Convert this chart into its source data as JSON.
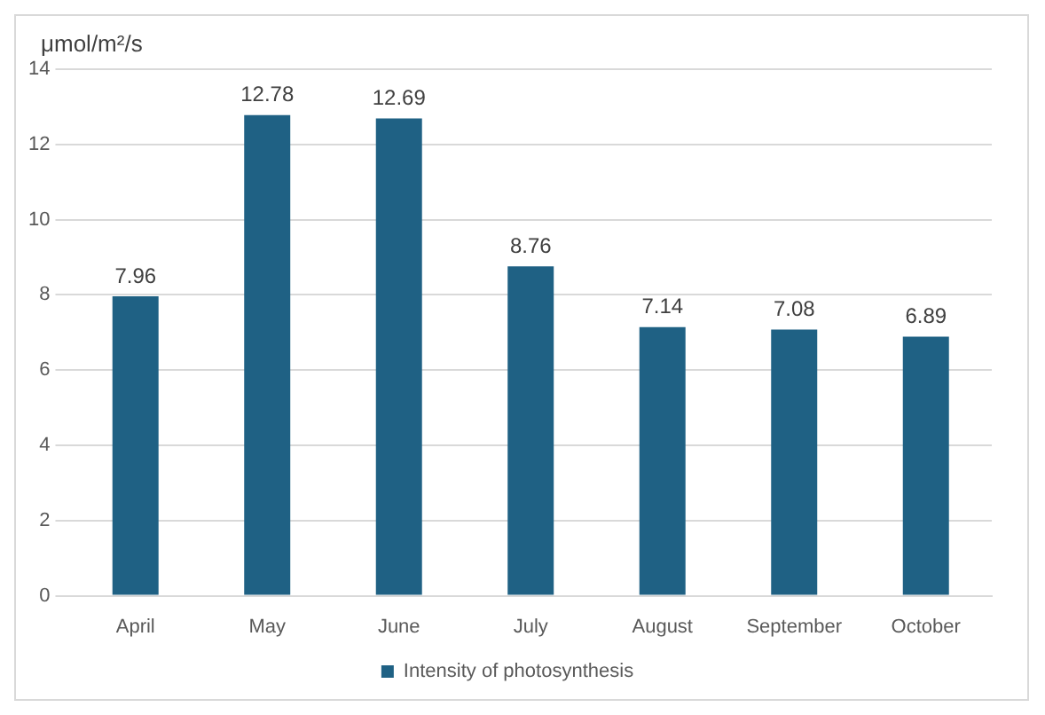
{
  "chart_data": {
    "type": "bar",
    "ylabel": "μmol/m²/s",
    "categories": [
      "April",
      "May",
      "June",
      "July",
      "August",
      "September",
      "October"
    ],
    "series": [
      {
        "name": "Intensity of photosynthesis",
        "color": "#1f6184",
        "values": [
          7.96,
          12.78,
          12.69,
          8.76,
          7.14,
          7.08,
          6.89
        ]
      }
    ],
    "ylim": [
      0,
      14
    ],
    "yticks": [
      0,
      2,
      4,
      6,
      8,
      10,
      12,
      14
    ],
    "grid": "y",
    "legend": "bottom",
    "data_labels": true
  }
}
